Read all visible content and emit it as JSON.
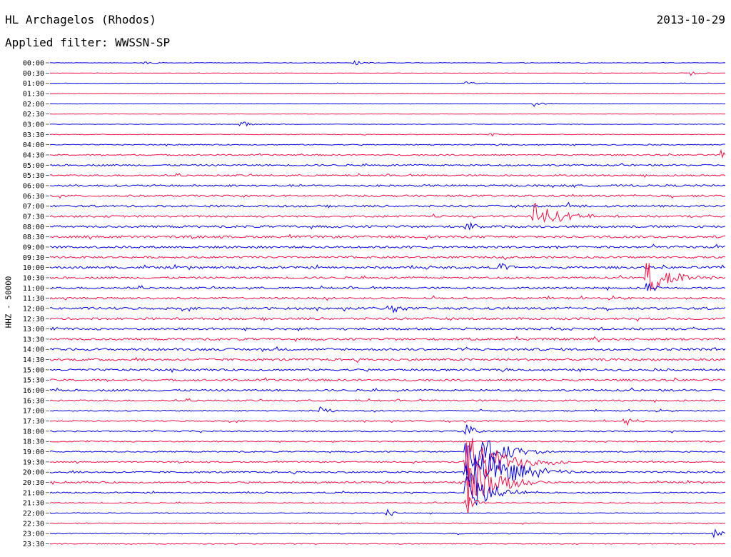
{
  "header": {
    "station": "HL Archagelos (Rhodos)",
    "date": "2013-10-29",
    "filter": "Applied filter: WWSSN-SP"
  },
  "colors": {
    "trace_even": "#0000dd",
    "trace_odd": "#ee1144",
    "background": "#ffffff"
  },
  "chart_data": {
    "type": "line",
    "subtype": "helicorder",
    "ylabel": "HHZ - 50000",
    "y_tick_labels": [
      "00:00",
      "00:30",
      "01:00",
      "01:30",
      "02:00",
      "02:30",
      "03:00",
      "03:30",
      "04:00",
      "04:30",
      "05:00",
      "05:30",
      "06:00",
      "06:30",
      "07:00",
      "07:30",
      "08:00",
      "08:30",
      "09:00",
      "09:30",
      "10:00",
      "10:30",
      "11:00",
      "11:30",
      "12:00",
      "12:30",
      "13:00",
      "13:30",
      "14:00",
      "14:30",
      "15:00",
      "15:30",
      "16:00",
      "16:30",
      "17:00",
      "17:30",
      "18:00",
      "18:30",
      "19:00",
      "19:30",
      "20:00",
      "20:30",
      "21:00",
      "21:30",
      "22:00",
      "22:30",
      "23:00",
      "23:30"
    ],
    "row_duration_minutes": 30,
    "series_colors_alternate": [
      "blue",
      "red"
    ],
    "noise_level_by_row": [
      0.15,
      0.12,
      0.12,
      0.1,
      0.1,
      0.1,
      0.15,
      0.2,
      0.3,
      0.4,
      0.5,
      0.5,
      0.6,
      0.6,
      0.6,
      0.6,
      0.7,
      0.7,
      0.7,
      0.6,
      0.7,
      0.6,
      0.6,
      0.6,
      0.7,
      0.7,
      0.7,
      0.7,
      0.7,
      0.7,
      0.6,
      0.6,
      0.6,
      0.5,
      0.4,
      0.4,
      0.4,
      0.4,
      0.4,
      0.4,
      0.5,
      0.5,
      0.4,
      0.3,
      0.3,
      0.3,
      0.3,
      0.3
    ],
    "events": [
      {
        "row": 0,
        "minute": 4.2,
        "amp": 0.5
      },
      {
        "row": 0,
        "minute": 13.5,
        "amp": 0.6
      },
      {
        "row": 1,
        "minute": 28.5,
        "amp": 0.6
      },
      {
        "row": 2,
        "minute": 18.5,
        "amp": 0.5
      },
      {
        "row": 4,
        "minute": 21.5,
        "amp": 0.7
      },
      {
        "row": 6,
        "minute": 8.5,
        "amp": 0.7
      },
      {
        "row": 7,
        "minute": 19.5,
        "amp": 0.5
      },
      {
        "row": 9,
        "minute": 29.8,
        "amp": 0.9
      },
      {
        "row": 14,
        "minute": 23.0,
        "amp": 1.0
      },
      {
        "row": 15,
        "minute": 21.5,
        "amp": 3.0,
        "duration": 1.0
      },
      {
        "row": 16,
        "minute": 18.5,
        "amp": 1.2
      },
      {
        "row": 20,
        "minute": 20.0,
        "amp": 1.3
      },
      {
        "row": 21,
        "minute": 26.5,
        "amp": 3.5,
        "duration": 1.0
      },
      {
        "row": 22,
        "minute": 26.5,
        "amp": 1.5
      },
      {
        "row": 24,
        "minute": 15.0,
        "amp": 1.2
      },
      {
        "row": 34,
        "minute": 12.0,
        "amp": 0.9
      },
      {
        "row": 35,
        "minute": 25.5,
        "amp": 1.1
      },
      {
        "row": 36,
        "minute": 18.5,
        "amp": 1.5
      },
      {
        "row": 38,
        "minute": 18.5,
        "amp": 5.0,
        "duration": 1.3
      },
      {
        "row": 39,
        "minute": 18.5,
        "amp": 6.0,
        "duration": 1.5
      },
      {
        "row": 40,
        "minute": 18.5,
        "amp": 7.0,
        "duration": 1.6
      },
      {
        "row": 41,
        "minute": 18.5,
        "amp": 5.5,
        "duration": 1.2
      },
      {
        "row": 42,
        "minute": 18.5,
        "amp": 4.0,
        "duration": 1.0
      },
      {
        "row": 43,
        "minute": 18.5,
        "amp": 2.5
      },
      {
        "row": 44,
        "minute": 15.0,
        "amp": 1.2
      },
      {
        "row": 46,
        "minute": 29.5,
        "amp": 1.0
      }
    ]
  }
}
